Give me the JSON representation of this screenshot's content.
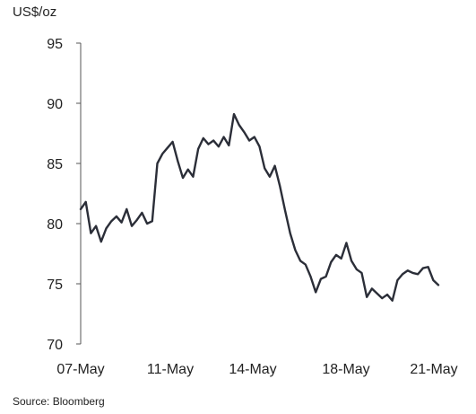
{
  "chart_data": {
    "type": "line",
    "unit_label": "US$/oz",
    "source": "Source: Bloomberg",
    "x_ticks": [
      "07-May",
      "11-May",
      "14-May",
      "18-May",
      "21-May"
    ],
    "ylim": [
      70,
      95
    ],
    "y_ticks": [
      70,
      75,
      80,
      85,
      90,
      95
    ],
    "grid": false,
    "legend": "none",
    "colors": {
      "line": "#2b2e38",
      "axis": "#555555",
      "text": "#222222"
    },
    "series": [
      {
        "name": "",
        "x": [
          0,
          0.2,
          0.4,
          0.6,
          0.8,
          1.0,
          1.2,
          1.4,
          1.6,
          1.8,
          2.0,
          2.2,
          2.4,
          2.6,
          2.8,
          3.0,
          3.2,
          3.4,
          3.6,
          3.8,
          4.0,
          4.2,
          4.4,
          4.6,
          4.8,
          5.0,
          5.2,
          5.4,
          5.6,
          5.8,
          6.0,
          6.2,
          6.4,
          6.6,
          6.8,
          7.0,
          7.2,
          7.4,
          7.6,
          7.8,
          8.0,
          8.2,
          8.4,
          8.6,
          8.8,
          9.0,
          9.2,
          9.4,
          9.6,
          9.8,
          10.0,
          10.2,
          10.4,
          10.6,
          10.8,
          11.0,
          11.2,
          11.4,
          11.6,
          11.8,
          12.0,
          12.2,
          12.4,
          12.6,
          12.8,
          13.0,
          13.2,
          13.4,
          13.6,
          13.8,
          14.0
        ],
        "values": [
          81.2,
          81.8,
          79.2,
          79.8,
          78.5,
          79.6,
          80.2,
          80.6,
          80.1,
          81.2,
          79.8,
          80.3,
          80.9,
          80.0,
          80.2,
          85.0,
          85.8,
          86.3,
          86.8,
          85.2,
          83.8,
          84.5,
          83.9,
          86.2,
          87.1,
          86.6,
          86.9,
          86.4,
          87.2,
          86.5,
          89.1,
          88.2,
          87.6,
          86.9,
          87.2,
          86.4,
          84.6,
          83.9,
          84.8,
          83.1,
          81.1,
          79.2,
          77.8,
          76.9,
          76.6,
          75.6,
          74.3,
          75.4,
          75.6,
          76.8,
          77.4,
          77.1,
          78.4,
          76.9,
          76.2,
          75.9,
          73.9,
          74.6,
          74.2,
          73.8,
          74.1,
          73.6,
          75.3,
          75.8,
          76.1,
          75.9,
          75.8,
          76.3,
          76.4,
          75.3,
          74.9
        ]
      }
    ]
  }
}
